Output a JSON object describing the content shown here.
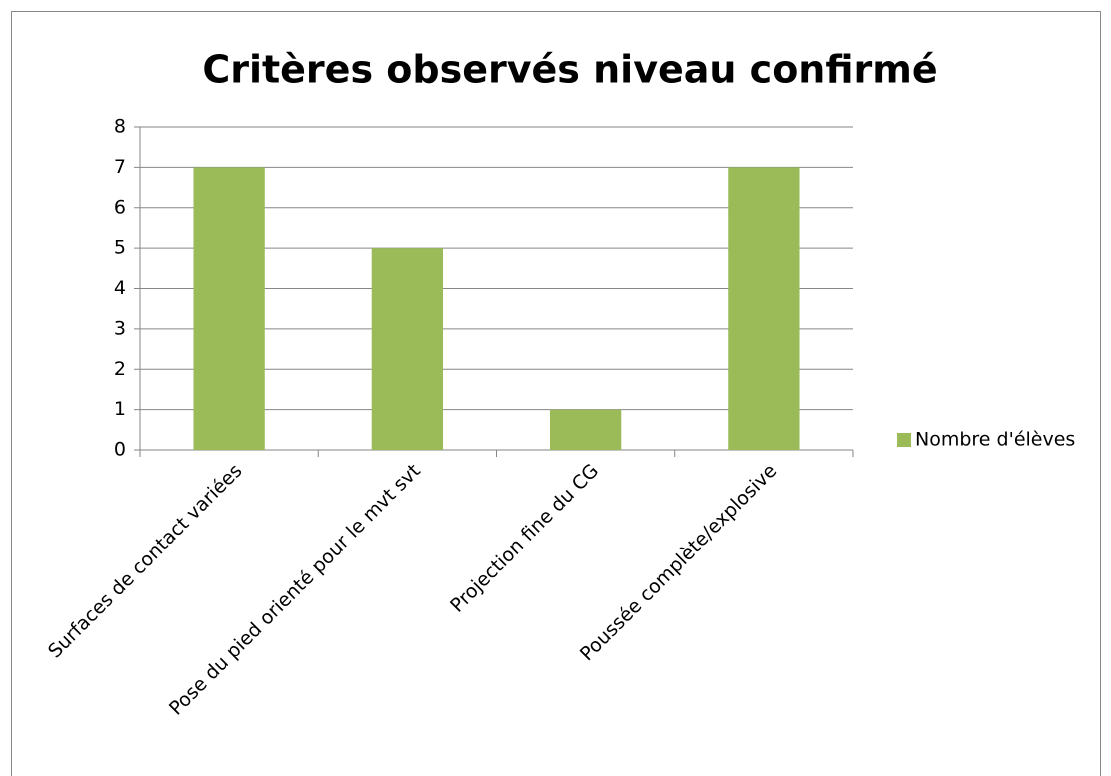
{
  "chart_data": {
    "type": "bar",
    "title": "Critères observés niveau confirmé",
    "categories": [
      "Surfaces de contact variées",
      "Pose du pied orienté pour le mvt svt",
      "Projection fine du CG",
      "Poussée complète/explosive"
    ],
    "series": [
      {
        "name": "Nombre d'élèves",
        "color": "#9bbb59",
        "values": [
          7,
          5,
          1,
          7
        ]
      }
    ],
    "ylim": [
      0,
      8
    ],
    "yticks": [
      0,
      1,
      2,
      3,
      4,
      5,
      6,
      7,
      8
    ],
    "grid": true,
    "legend": "right"
  }
}
